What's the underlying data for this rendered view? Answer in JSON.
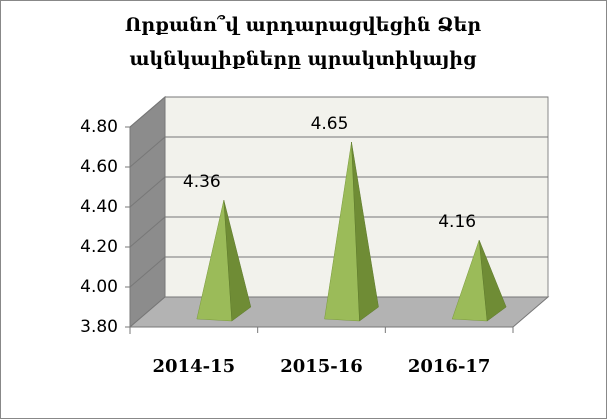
{
  "chart_data": {
    "type": "pyramid3d",
    "title": [
      "Որքանո՞վ արդարացվեցին Ձեր",
      "ակնկալիքները պրակտիկայից"
    ],
    "categories": [
      "2014-15",
      "2015-16",
      "2016-17"
    ],
    "values": [
      4.36,
      4.65,
      4.16
    ],
    "color": "#9bbb59",
    "ylim": [
      3.8,
      4.8
    ],
    "yticks": [
      {
        "value": 3.8,
        "label": "3.80"
      },
      {
        "value": 4.0,
        "label": "4.00"
      },
      {
        "value": 4.2,
        "label": "4.20"
      },
      {
        "value": 4.4,
        "label": "4.40"
      },
      {
        "value": 4.6,
        "label": "4.60"
      },
      {
        "value": 4.8,
        "label": "4.80"
      }
    ],
    "grid": true
  }
}
